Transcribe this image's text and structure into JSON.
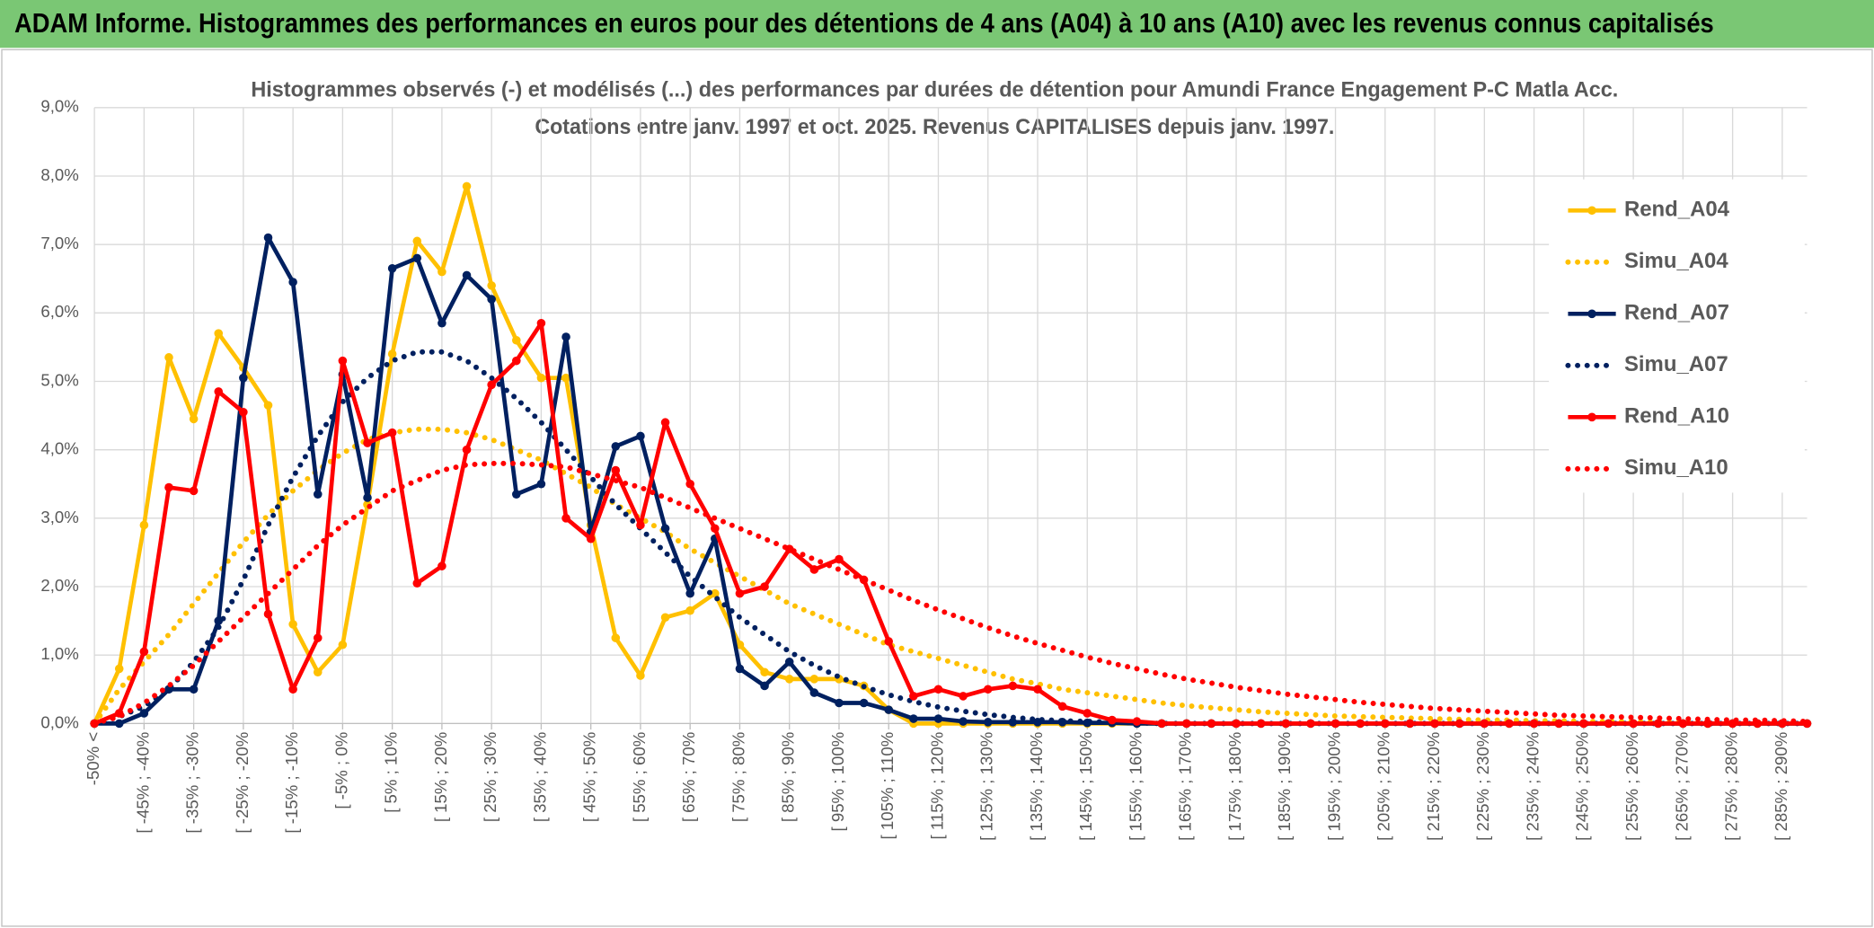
{
  "header": {
    "title": "ADAM Informe. Histogrammes des performances en euros pour des détentions de 4 ans (A04) à 10 ans (A10) avec les revenus connus capitalisés"
  },
  "chart_data": {
    "type": "line",
    "title": "Histogrammes observés (-) et modélisés (...) des performances par durées de détention pour Amundi France Engagement P-C Matla Acc.",
    "subtitle": "Cotations entre janv. 1997 et oct. 2025. Revenus CAPITALISES depuis janv. 1997.",
    "categories": [
      "-50% <",
      null,
      "[ -45% ; -40%",
      null,
      "[ -35% ; -30%",
      null,
      "[ -25% ; -20%",
      null,
      "[ -15% ; -10%",
      null,
      "[ -5% ; 0%",
      null,
      "[ 5% ; 10%",
      null,
      "[ 15% ; 20%",
      null,
      "[ 25% ; 30%",
      null,
      "[ 35% ; 40%",
      null,
      "[ 45% ; 50%",
      null,
      "[ 55% ; 60%",
      null,
      "[ 65% ; 70%",
      null,
      "[ 75% ; 80%",
      null,
      "[ 85% ; 90%",
      null,
      "[ 95% ; 100%",
      null,
      "[ 105% ; 110%",
      null,
      "[ 115% ; 120%",
      null,
      "[ 125% ; 130%",
      null,
      "[ 135% ; 140%",
      null,
      "[ 145% ; 150%",
      null,
      "[ 155% ; 160%",
      null,
      "[ 165% ; 170%",
      null,
      "[ 175% ; 180%",
      null,
      "[ 185% ; 190%",
      null,
      "[ 195% ; 200%",
      null,
      "[ 205% ; 210%",
      null,
      "[ 215% ; 220%",
      null,
      "[ 225% ; 230%",
      null,
      "[ 235% ; 240%",
      null,
      "[ 245% ; 250%",
      null,
      "[ 255% ; 260%",
      null,
      "[ 265% ; 270%",
      null,
      "[ 275% ; 280%",
      null,
      "[ 285% ; 290%",
      null
    ],
    "ylim": [
      0,
      9
    ],
    "yticks": [
      {
        "value": 0,
        "label": "0,0%"
      },
      {
        "value": 1,
        "label": "1,0%"
      },
      {
        "value": 2,
        "label": "2,0%"
      },
      {
        "value": 3,
        "label": "3,0%"
      },
      {
        "value": 4,
        "label": "4,0%"
      },
      {
        "value": 5,
        "label": "5,0%"
      },
      {
        "value": 6,
        "label": "6,0%"
      },
      {
        "value": 7,
        "label": "7,0%"
      },
      {
        "value": 8,
        "label": "8,0%"
      },
      {
        "value": 9,
        "label": "9,0%"
      }
    ],
    "grid": true,
    "legend": "right",
    "series": [
      {
        "name": "Rend_A04",
        "color": "#ffc000",
        "line_style": "solid",
        "markers": true,
        "values": [
          0,
          0.8,
          2.9,
          5.35,
          4.45,
          5.7,
          5.2,
          4.65,
          1.45,
          0.75,
          1.15,
          3.2,
          5.4,
          7.05,
          6.6,
          7.85,
          6.4,
          5.6,
          5.05,
          5.05,
          2.9,
          1.25,
          0.7,
          1.55,
          1.65,
          1.9,
          1.15,
          0.75,
          0.65,
          0.65,
          0.65,
          0.55,
          0.2,
          0,
          0,
          0,
          0,
          0,
          0,
          0,
          0,
          0,
          0,
          0,
          0,
          0,
          0,
          0,
          0,
          0,
          0,
          0,
          0,
          0,
          0,
          0,
          0,
          0,
          0,
          0,
          0,
          0,
          0,
          0,
          0,
          0,
          0,
          0,
          0,
          0
        ]
      },
      {
        "name": "Simu_A04",
        "color": "#ffc000",
        "line_style": "dotted",
        "markers": false,
        "values": [
          0,
          0.5,
          0.9,
          1.3,
          1.75,
          2.2,
          2.65,
          3.05,
          3.4,
          3.7,
          3.95,
          4.15,
          4.25,
          4.3,
          4.3,
          4.25,
          4.15,
          4.0,
          3.85,
          3.65,
          3.45,
          3.2,
          3.0,
          2.8,
          2.55,
          2.35,
          2.15,
          1.95,
          1.75,
          1.6,
          1.45,
          1.3,
          1.15,
          1.05,
          0.95,
          0.85,
          0.75,
          0.65,
          0.58,
          0.5,
          0.45,
          0.4,
          0.35,
          0.3,
          0.26,
          0.23,
          0.2,
          0.17,
          0.15,
          0.13,
          0.11,
          0.1,
          0.09,
          0.08,
          0.07,
          0.06,
          0.05,
          0.05,
          0.04,
          0.04,
          0.03,
          0.03,
          0.03,
          0.02,
          0.02,
          0.02,
          0.02,
          0.01,
          0.01,
          0.01
        ]
      },
      {
        "name": "Rend_A07",
        "color": "#002060",
        "line_style": "solid",
        "markers": true,
        "values": [
          0,
          0,
          0.15,
          0.5,
          0.5,
          1.5,
          5.05,
          7.1,
          6.45,
          3.35,
          5.1,
          3.3,
          6.65,
          6.8,
          5.85,
          6.55,
          6.2,
          3.35,
          3.5,
          5.65,
          2.8,
          4.05,
          4.2,
          2.85,
          1.9,
          2.7,
          0.8,
          0.55,
          0.9,
          0.45,
          0.3,
          0.3,
          0.2,
          0.07,
          0.07,
          0.03,
          0.02,
          0.02,
          0.02,
          0.02,
          0.01,
          0.01,
          0,
          0,
          0,
          0,
          0,
          0,
          0,
          0,
          0,
          0,
          0,
          0,
          0,
          0,
          0,
          0,
          0,
          0,
          0,
          0,
          0,
          0,
          0,
          0,
          0,
          0,
          0,
          0
        ]
      },
      {
        "name": "Simu_A07",
        "color": "#002060",
        "line_style": "dotted",
        "markers": false,
        "values": [
          0,
          0.1,
          0.25,
          0.5,
          0.9,
          1.4,
          2.1,
          2.9,
          3.6,
          4.2,
          4.7,
          5.05,
          5.3,
          5.43,
          5.43,
          5.3,
          5.05,
          4.75,
          4.4,
          4.0,
          3.6,
          3.2,
          2.85,
          2.5,
          2.15,
          1.85,
          1.55,
          1.3,
          1.05,
          0.85,
          0.68,
          0.54,
          0.42,
          0.32,
          0.24,
          0.18,
          0.13,
          0.09,
          0.06,
          0.04,
          0.03,
          0.02,
          0.01,
          0,
          0,
          0,
          0,
          0,
          0,
          0,
          0,
          0,
          0,
          0,
          0,
          0,
          0,
          0,
          0,
          0,
          0,
          0,
          0,
          0,
          0,
          0,
          0,
          0,
          0,
          0
        ]
      },
      {
        "name": "Rend_A10",
        "color": "#ff0000",
        "line_style": "solid",
        "markers": true,
        "values": [
          0,
          0.15,
          1.05,
          3.45,
          3.4,
          4.85,
          4.55,
          1.6,
          0.5,
          1.25,
          5.3,
          4.1,
          4.25,
          2.05,
          2.3,
          4.0,
          4.95,
          5.3,
          5.85,
          3.0,
          2.7,
          3.7,
          2.9,
          4.4,
          3.5,
          2.85,
          1.9,
          2.0,
          2.55,
          2.25,
          2.4,
          2.1,
          1.2,
          0.4,
          0.5,
          0.4,
          0.5,
          0.55,
          0.5,
          0.25,
          0.15,
          0.05,
          0.03,
          0,
          0,
          0,
          0,
          0,
          0,
          0,
          0,
          0,
          0,
          0,
          0,
          0,
          0,
          0,
          0,
          0,
          0,
          0,
          0,
          0,
          0,
          0,
          0,
          0,
          0,
          0
        ]
      },
      {
        "name": "Simu_A10",
        "color": "#ff0000",
        "line_style": "dotted",
        "markers": false,
        "values": [
          0,
          0.1,
          0.3,
          0.55,
          0.85,
          1.2,
          1.55,
          1.9,
          2.25,
          2.6,
          2.9,
          3.15,
          3.4,
          3.55,
          3.7,
          3.78,
          3.8,
          3.8,
          3.78,
          3.75,
          3.65,
          3.55,
          3.45,
          3.3,
          3.15,
          3.0,
          2.85,
          2.7,
          2.55,
          2.4,
          2.25,
          2.1,
          1.95,
          1.8,
          1.66,
          1.53,
          1.4,
          1.28,
          1.17,
          1.07,
          0.97,
          0.88,
          0.8,
          0.72,
          0.65,
          0.59,
          0.53,
          0.48,
          0.43,
          0.39,
          0.35,
          0.31,
          0.28,
          0.25,
          0.22,
          0.2,
          0.18,
          0.16,
          0.14,
          0.12,
          0.11,
          0.1,
          0.09,
          0.08,
          0.07,
          0.06,
          0.05,
          0.05,
          0.04,
          0.03
        ]
      }
    ]
  }
}
